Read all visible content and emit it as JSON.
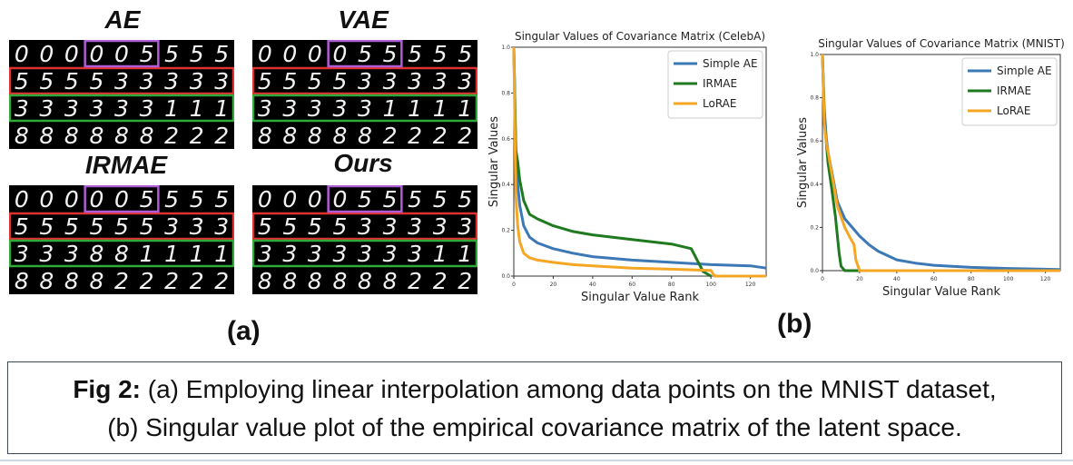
{
  "panel_a": {
    "grids": [
      {
        "title": "AE",
        "rows": [
          [
            "0",
            "0",
            "0",
            "0",
            "0",
            "5",
            "5",
            "5",
            "5"
          ],
          [
            "5",
            "5",
            "5",
            "5",
            "3",
            "3",
            "3",
            "3",
            "3"
          ],
          [
            "3",
            "3",
            "3",
            "3",
            "3",
            "3",
            "1",
            "1",
            "1"
          ],
          [
            "8",
            "8",
            "8",
            "8",
            "8",
            "8",
            "2",
            "2",
            "2"
          ]
        ],
        "purple": [
          3,
          5
        ]
      },
      {
        "title": "VAE",
        "rows": [
          [
            "0",
            "0",
            "0",
            "0",
            "5",
            "5",
            "5",
            "5",
            "5"
          ],
          [
            "5",
            "5",
            "5",
            "5",
            "3",
            "3",
            "3",
            "3",
            "3"
          ],
          [
            "3",
            "3",
            "3",
            "3",
            "3",
            "1",
            "1",
            "1",
            "1"
          ],
          [
            "8",
            "8",
            "8",
            "8",
            "8",
            "2",
            "2",
            "2",
            "2"
          ]
        ],
        "purple": [
          3,
          5
        ]
      },
      {
        "title": "IRMAE",
        "rows": [
          [
            "0",
            "0",
            "0",
            "0",
            "0",
            "5",
            "5",
            "5",
            "5"
          ],
          [
            "5",
            "5",
            "5",
            "5",
            "5",
            "5",
            "3",
            "3",
            "3"
          ],
          [
            "3",
            "3",
            "3",
            "8",
            "8",
            "1",
            "1",
            "1",
            "1"
          ],
          [
            "8",
            "8",
            "8",
            "8",
            "2",
            "2",
            "2",
            "2",
            "2"
          ]
        ],
        "purple": [
          3,
          5
        ]
      },
      {
        "title": "Ours",
        "rows": [
          [
            "0",
            "0",
            "0",
            "0",
            "5",
            "5",
            "5",
            "5",
            "5"
          ],
          [
            "5",
            "5",
            "5",
            "5",
            "3",
            "3",
            "3",
            "3",
            "3"
          ],
          [
            "3",
            "3",
            "3",
            "3",
            "3",
            "3",
            "3",
            "1",
            "1"
          ],
          [
            "8",
            "8",
            "8",
            "8",
            "8",
            "8",
            "2",
            "2",
            "2"
          ]
        ],
        "purple": [
          3,
          5
        ]
      }
    ],
    "label": "(a)"
  },
  "panel_b_label": "(b)",
  "chart_data": [
    {
      "type": "line",
      "title": "Singular Values of Covariance Matrix (CelebA)",
      "xlabel": "Singular Value Rank",
      "ylabel": "Singular Values",
      "xlim": [
        0,
        128
      ],
      "ylim": [
        0,
        1.0
      ],
      "xticks": [
        0,
        20,
        40,
        60,
        80,
        100,
        120
      ],
      "yticks": [
        0.0,
        0.2,
        0.4,
        0.6,
        0.8,
        1.0
      ],
      "legend_position": "top-right",
      "series": [
        {
          "name": "Simple AE",
          "color": "#3b78b5",
          "x": [
            0,
            1,
            2,
            3,
            5,
            8,
            12,
            20,
            30,
            40,
            60,
            80,
            100,
            120,
            128
          ],
          "y": [
            1.0,
            0.55,
            0.4,
            0.31,
            0.22,
            0.17,
            0.145,
            0.12,
            0.1,
            0.085,
            0.07,
            0.06,
            0.05,
            0.045,
            0.035
          ]
        },
        {
          "name": "IRMAE",
          "color": "#1f7a1f",
          "x": [
            0,
            1,
            2,
            3,
            5,
            8,
            12,
            20,
            30,
            40,
            60,
            80,
            90,
            93,
            96,
            100
          ],
          "y": [
            1.0,
            0.55,
            0.5,
            0.42,
            0.33,
            0.27,
            0.25,
            0.22,
            0.195,
            0.18,
            0.16,
            0.14,
            0.12,
            0.07,
            0.02,
            0.0
          ]
        },
        {
          "name": "LoRAE",
          "color": "#f5a623",
          "x": [
            0,
            1,
            2,
            3,
            5,
            8,
            12,
            20,
            30,
            40,
            60,
            80,
            100,
            101,
            102,
            128
          ],
          "y": [
            1.0,
            0.35,
            0.22,
            0.15,
            0.1,
            0.08,
            0.07,
            0.06,
            0.05,
            0.045,
            0.035,
            0.03,
            0.025,
            0.01,
            0.0,
            0.0
          ]
        }
      ]
    },
    {
      "type": "line",
      "title": "Singular Values of Covariance Matrix (MNIST)",
      "xlabel": "Singular Value Rank",
      "ylabel": "Singular Values",
      "xlim": [
        0,
        128
      ],
      "ylim": [
        0,
        1.0
      ],
      "xticks": [
        0,
        20,
        40,
        60,
        80,
        100,
        120
      ],
      "yticks": [
        0.0,
        0.2,
        0.4,
        0.6,
        0.8,
        1.0
      ],
      "legend_position": "top-right",
      "series": [
        {
          "name": "Simple AE",
          "color": "#3b78b5",
          "x": [
            0,
            1,
            2,
            3,
            5,
            8,
            12,
            16,
            20,
            25,
            30,
            40,
            50,
            60,
            80,
            100,
            128
          ],
          "y": [
            1.0,
            0.75,
            0.62,
            0.55,
            0.46,
            0.32,
            0.24,
            0.2,
            0.16,
            0.12,
            0.09,
            0.05,
            0.035,
            0.025,
            0.015,
            0.01,
            0.005
          ]
        },
        {
          "name": "IRMAE",
          "color": "#1f7a1f",
          "x": [
            0,
            1,
            2,
            3,
            5,
            7,
            9,
            10,
            12,
            128
          ],
          "y": [
            1.0,
            0.7,
            0.6,
            0.5,
            0.38,
            0.25,
            0.08,
            0.02,
            0.0,
            0.0
          ]
        },
        {
          "name": "LoRAE",
          "color": "#f5a623",
          "x": [
            0,
            1,
            2,
            3,
            5,
            8,
            12,
            15,
            17,
            18,
            20,
            128
          ],
          "y": [
            1.0,
            0.68,
            0.6,
            0.55,
            0.45,
            0.3,
            0.2,
            0.15,
            0.12,
            0.05,
            0.0,
            0.0
          ]
        }
      ]
    }
  ],
  "caption": {
    "line1_bold": "Fig 2:",
    "line1_rest": " (a) Employing linear interpolation among data points on the MNIST dataset,",
    "line2": "(b) Singular value plot of the empirical covariance matrix of the latent space."
  },
  "colors": {
    "grid_purple": "#b05cd6",
    "grid_red": "#e03030",
    "grid_green": "#2faa3a"
  }
}
